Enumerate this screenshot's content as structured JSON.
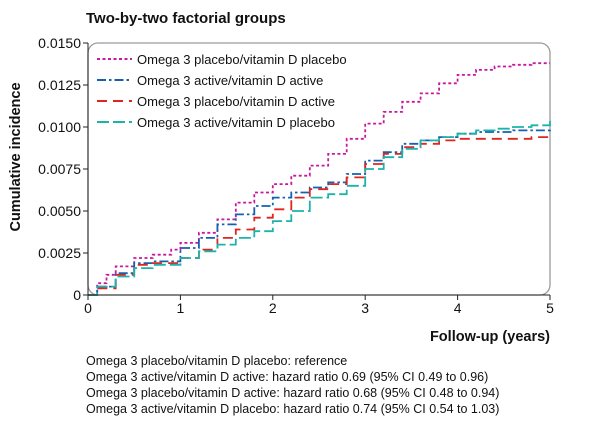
{
  "chart_data": {
    "type": "line",
    "title": "Two-by-two factorial  groups",
    "xlabel": "Follow-up (years)",
    "ylabel": "Cumulative incidence",
    "xlim": [
      0,
      5
    ],
    "ylim": [
      0,
      0.015
    ],
    "x_ticks": [
      {
        "value": 0,
        "label": "0"
      },
      {
        "value": 1,
        "label": "1"
      },
      {
        "value": 2,
        "label": "2"
      },
      {
        "value": 3,
        "label": "3"
      },
      {
        "value": 4,
        "label": "4"
      },
      {
        "value": 5,
        "label": "5"
      }
    ],
    "y_ticks": [
      {
        "value": 0,
        "label": "0"
      },
      {
        "value": 0.0025,
        "label": "0.0025"
      },
      {
        "value": 0.005,
        "label": "0.0050"
      },
      {
        "value": 0.0075,
        "label": "0.0075"
      },
      {
        "value": 0.01,
        "label": "0.0100"
      },
      {
        "value": 0.0125,
        "label": "0.0125"
      },
      {
        "value": 0.015,
        "label": "0.0150"
      }
    ],
    "grid": false,
    "legend_position": "top-left",
    "series": [
      {
        "name": "Omega 3 placebo/vitamin D placebo",
        "color": "#c8199e",
        "dash": "short",
        "x": [
          0,
          0.1,
          0.2,
          0.3,
          0.5,
          0.7,
          0.9,
          1.0,
          1.2,
          1.4,
          1.6,
          1.8,
          2.0,
          2.2,
          2.4,
          2.6,
          2.8,
          3.0,
          3.2,
          3.4,
          3.6,
          3.8,
          4.0,
          4.2,
          4.4,
          4.6,
          4.8,
          5.0
        ],
        "y": [
          0,
          0.0007,
          0.0012,
          0.0017,
          0.0022,
          0.0024,
          0.0027,
          0.0031,
          0.0037,
          0.0045,
          0.0055,
          0.0061,
          0.0066,
          0.0071,
          0.0077,
          0.0084,
          0.0093,
          0.0102,
          0.0109,
          0.0115,
          0.012,
          0.0126,
          0.0131,
          0.0134,
          0.0136,
          0.0137,
          0.0138,
          0.0138
        ]
      },
      {
        "name": "Omega 3 active/vitamin D active",
        "color": "#1560b0",
        "dash": "dashdot",
        "x": [
          0,
          0.1,
          0.3,
          0.5,
          0.7,
          1.0,
          1.2,
          1.4,
          1.6,
          1.8,
          2.0,
          2.2,
          2.4,
          2.6,
          2.8,
          3.0,
          3.2,
          3.4,
          3.6,
          3.8,
          4.0,
          4.2,
          4.4,
          4.6,
          4.8,
          5.0
        ],
        "y": [
          0,
          0.0005,
          0.0013,
          0.0019,
          0.002,
          0.0028,
          0.0034,
          0.0042,
          0.0048,
          0.0053,
          0.0058,
          0.0061,
          0.0064,
          0.0067,
          0.0072,
          0.008,
          0.0085,
          0.009,
          0.0092,
          0.0094,
          0.0096,
          0.0097,
          0.0097,
          0.0098,
          0.0098,
          0.0099
        ]
      },
      {
        "name": "Omega 3 placebo/vitamin D active",
        "color": "#e0241e",
        "dash": "long",
        "x": [
          0,
          0.1,
          0.3,
          0.5,
          0.7,
          1.0,
          1.2,
          1.4,
          1.6,
          1.8,
          2.0,
          2.2,
          2.4,
          2.6,
          2.8,
          3.0,
          3.2,
          3.4,
          3.6,
          3.8,
          4.0,
          4.2,
          4.4,
          4.6,
          4.8,
          5.0
        ],
        "y": [
          0,
          0.0004,
          0.0012,
          0.0018,
          0.0019,
          0.0022,
          0.0027,
          0.0034,
          0.0039,
          0.0046,
          0.0051,
          0.0058,
          0.0063,
          0.0066,
          0.007,
          0.0078,
          0.0084,
          0.0088,
          0.009,
          0.0092,
          0.0093,
          0.0093,
          0.0093,
          0.0093,
          0.0094,
          0.0094
        ]
      },
      {
        "name": "Omega 3 active/vitamin D placebo",
        "color": "#1cb3aa",
        "dash": "dash",
        "x": [
          0,
          0.1,
          0.3,
          0.5,
          0.7,
          1.0,
          1.2,
          1.4,
          1.6,
          1.8,
          2.0,
          2.2,
          2.4,
          2.6,
          2.8,
          3.0,
          3.2,
          3.4,
          3.6,
          3.8,
          4.0,
          4.2,
          4.4,
          4.6,
          4.8,
          5.0
        ],
        "y": [
          0,
          0.0005,
          0.0011,
          0.0016,
          0.0018,
          0.0022,
          0.0026,
          0.003,
          0.0034,
          0.0038,
          0.0044,
          0.005,
          0.0058,
          0.006,
          0.0065,
          0.0075,
          0.0082,
          0.0087,
          0.0092,
          0.0094,
          0.0096,
          0.0098,
          0.0099,
          0.01,
          0.0101,
          0.0104
        ]
      }
    ]
  },
  "footnotes": [
    "Omega 3 placebo/vitamin D placebo: reference",
    "Omega 3 active/vitamin D active: hazard ratio 0.69 (95% CI 0.49 to 0.96)",
    "Omega 3 placebo/vitamin D active: hazard ratio 0.68 (95% CI 0.48 to 0.94)",
    "Omega 3 active/vitamin D placebo: hazard ratio 0.74 (95% CI 0.54 to 1.03)"
  ]
}
